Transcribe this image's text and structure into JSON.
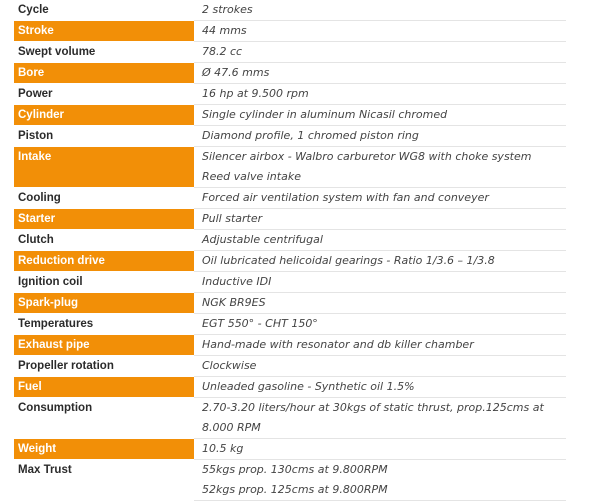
{
  "colors": {
    "highlight": "#f28f07",
    "label_text": "#2b2b2b",
    "value_text": "#444444",
    "row_rule": "#e4e4e4"
  },
  "specs": [
    {
      "label": "Cycle",
      "highlight": false,
      "value": [
        "2 strokes"
      ]
    },
    {
      "label": "Stroke",
      "highlight": true,
      "value": [
        "44 mms"
      ]
    },
    {
      "label": "Swept volume",
      "highlight": false,
      "value": [
        "78.2 cc"
      ]
    },
    {
      "label": "Bore",
      "highlight": true,
      "value": [
        "Ø 47.6 mms"
      ]
    },
    {
      "label": "Power",
      "highlight": false,
      "value": [
        "16 hp at 9.500 rpm"
      ]
    },
    {
      "label": "Cylinder",
      "highlight": true,
      "value": [
        "Single cylinder in aluminum Nicasil chromed"
      ]
    },
    {
      "label": "Piston",
      "highlight": false,
      "value": [
        "Diamond profile, 1 chromed piston ring"
      ]
    },
    {
      "label": "Intake",
      "highlight": true,
      "value": [
        "Silencer airbox - Walbro carburetor WG8 with choke system",
        "Reed valve intake"
      ]
    },
    {
      "label": "Cooling",
      "highlight": false,
      "value": [
        "Forced air ventilation system with fan and conveyer"
      ]
    },
    {
      "label": "Starter",
      "highlight": true,
      "value": [
        "Pull starter"
      ]
    },
    {
      "label": "Clutch",
      "highlight": false,
      "value": [
        "Adjustable centrifugal"
      ]
    },
    {
      "label": "Reduction drive",
      "highlight": true,
      "value": [
        "Oil lubricated helicoidal gearings - Ratio 1/3.6 – 1/3.8"
      ]
    },
    {
      "label": "Ignition coil",
      "highlight": false,
      "value": [
        "Inductive IDI"
      ]
    },
    {
      "label": "Spark-plug",
      "highlight": true,
      "value": [
        "NGK BR9ES"
      ]
    },
    {
      "label": "Temperatures",
      "highlight": false,
      "value": [
        "EGT 550° - CHT 150°"
      ]
    },
    {
      "label": "Exhaust pipe",
      "highlight": true,
      "value": [
        "Hand-made with resonator and db killer chamber"
      ]
    },
    {
      "label": "Propeller rotation",
      "highlight": false,
      "value": [
        "Clockwise"
      ]
    },
    {
      "label": "Fuel",
      "highlight": true,
      "value": [
        "Unleaded gasoline - Synthetic oil 1.5%"
      ]
    },
    {
      "label": "Consumption",
      "highlight": false,
      "value": [
        "2.70-3.20 liters/hour at 30kgs of static thrust, prop.125cms at",
        "8.000 RPM"
      ]
    },
    {
      "label": "Weight",
      "highlight": true,
      "value": [
        "10.5 kg"
      ]
    },
    {
      "label": "Max Trust",
      "highlight": false,
      "value": [
        "55kgs prop. 130cms at 9.800RPM",
        "52kgs prop. 125cms at 9.800RPM"
      ]
    }
  ]
}
